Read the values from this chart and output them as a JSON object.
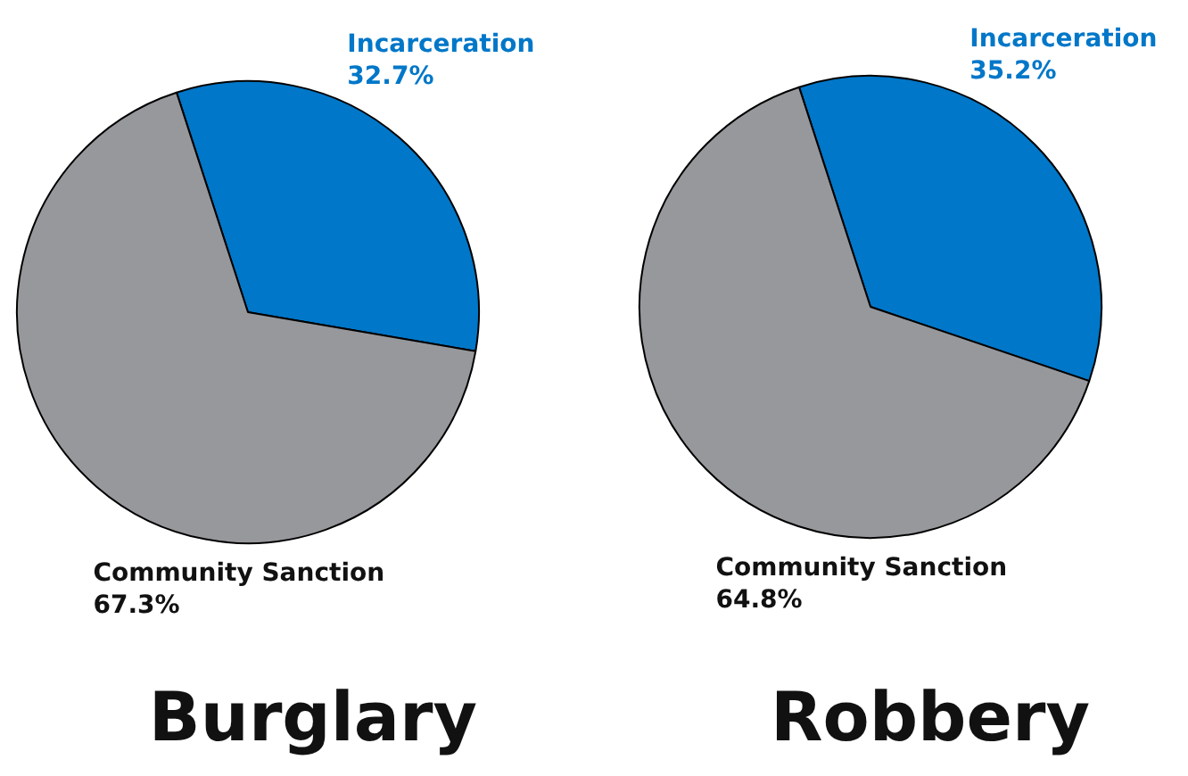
{
  "chart_data": [
    {
      "type": "pie",
      "title": "Burglary",
      "categories": [
        "Incarceration",
        "Community Sanction"
      ],
      "values": [
        32.7,
        67.3
      ],
      "colors": [
        "#0077c8",
        "#97989c"
      ],
      "value_labels": [
        "32.7%",
        "67.3%"
      ]
    },
    {
      "type": "pie",
      "title": "Robbery",
      "categories": [
        "Incarceration",
        "Community Sanction"
      ],
      "values": [
        35.2,
        64.8
      ],
      "colors": [
        "#0077c8",
        "#97989c"
      ],
      "value_labels": [
        "35.2%",
        "64.8%"
      ]
    }
  ]
}
